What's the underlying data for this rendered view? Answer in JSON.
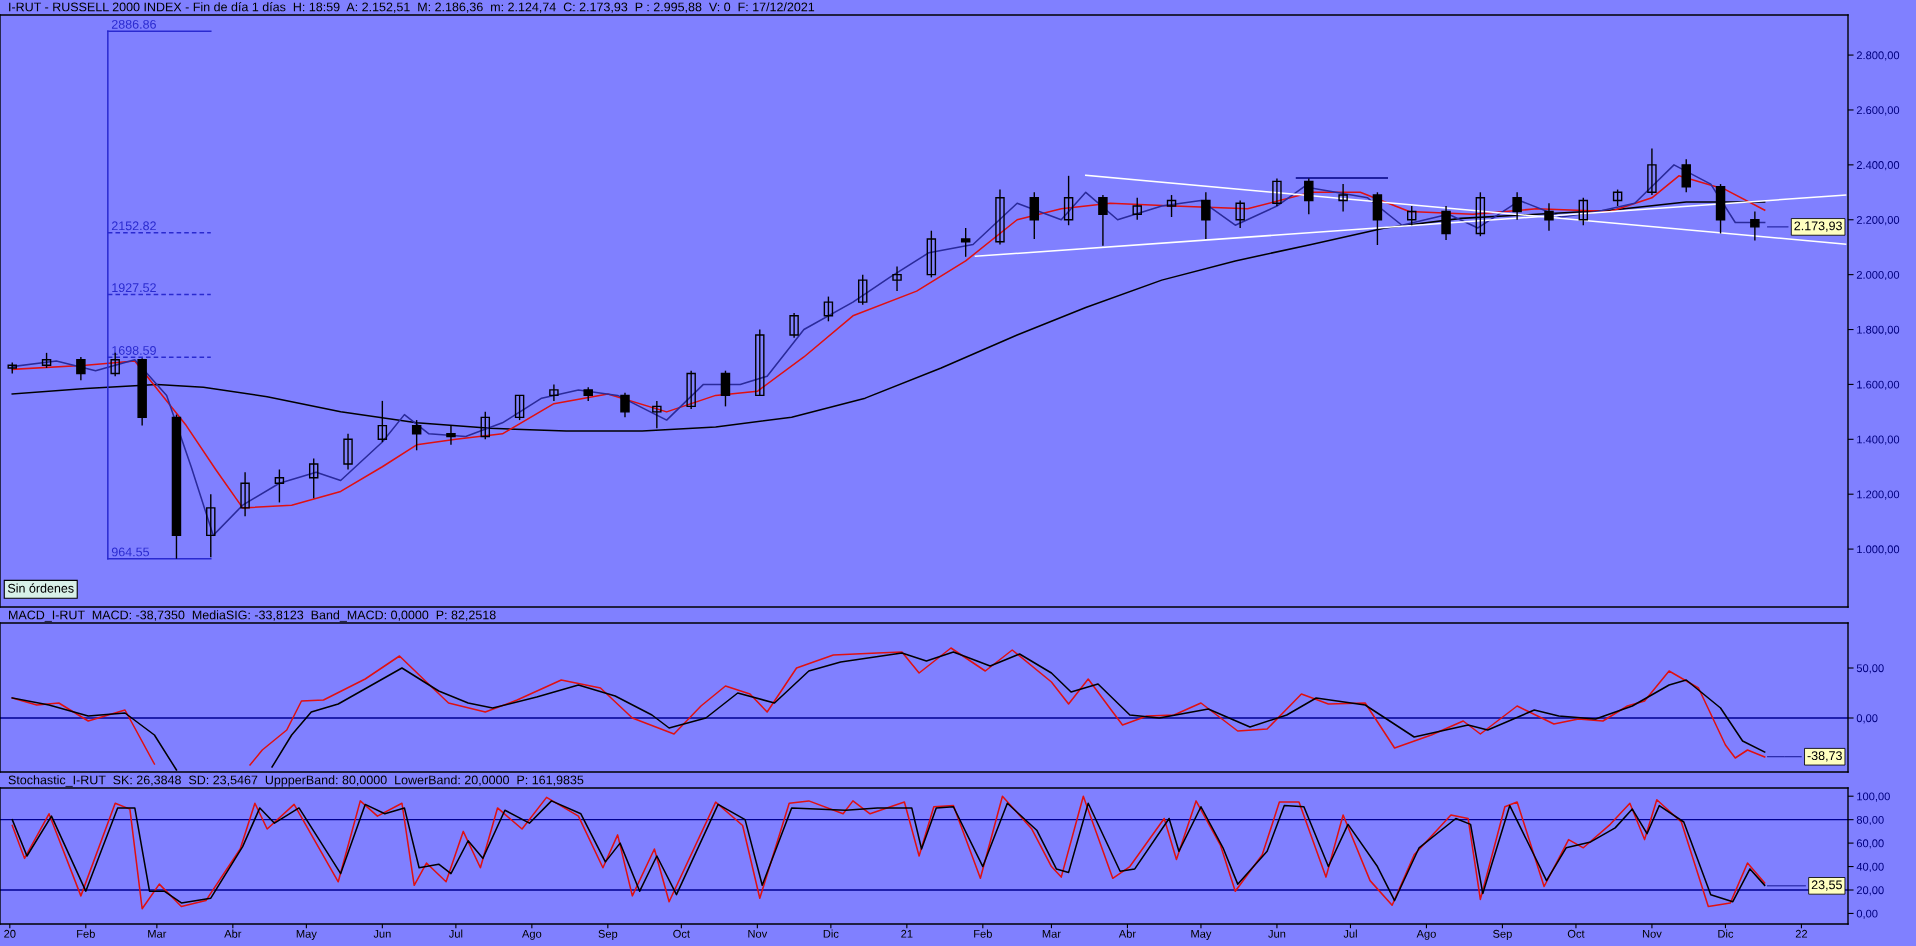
{
  "chart_data": [
    {
      "type": "candlestick",
      "title": "I-RUT - RUSSELL 2000 INDEX - Fin de día 1 días  H: 18:59  A: 2.152,51  M: 2.186,36  m: 2.124,74  C: 2.173,93  P : 2.995,88  V: 0  F: 17/12/2021",
      "x": [
        "2020-01-02",
        "2020-01-16",
        "2020-01-30",
        "2020-02-13",
        "2020-02-24",
        "2020-03-09",
        "2020-03-23",
        "2020-04-06",
        "2020-04-20",
        "2020-05-04",
        "2020-05-18",
        "2020-06-01",
        "2020-06-15",
        "2020-06-29",
        "2020-07-13",
        "2020-07-27",
        "2020-08-10",
        "2020-08-24",
        "2020-09-08",
        "2020-09-21",
        "2020-10-05",
        "2020-10-19",
        "2020-11-02",
        "2020-11-16",
        "2020-11-30",
        "2020-12-14",
        "2020-12-28",
        "2021-01-11",
        "2021-01-25",
        "2021-02-08",
        "2021-02-22",
        "2021-03-08",
        "2021-03-22",
        "2021-04-05",
        "2021-04-19",
        "2021-05-03",
        "2021-05-17",
        "2021-06-01",
        "2021-06-14",
        "2021-06-28",
        "2021-07-12",
        "2021-07-26",
        "2021-08-09",
        "2021-08-23",
        "2021-09-07",
        "2021-09-20",
        "2021-10-04",
        "2021-10-18",
        "2021-11-01",
        "2021-11-15",
        "2021-11-29",
        "2021-12-13"
      ],
      "ohlc": [
        [
          1660,
          1680,
          1640,
          1670
        ],
        [
          1670,
          1715,
          1660,
          1690
        ],
        [
          1690,
          1700,
          1615,
          1640
        ],
        [
          1640,
          1715,
          1630,
          1690
        ],
        [
          1690,
          1695,
          1450,
          1480
        ],
        [
          1480,
          1490,
          965,
          1050
        ],
        [
          1050,
          1200,
          970,
          1150
        ],
        [
          1150,
          1280,
          1120,
          1240
        ],
        [
          1240,
          1290,
          1170,
          1260
        ],
        [
          1260,
          1330,
          1185,
          1310
        ],
        [
          1310,
          1420,
          1290,
          1400
        ],
        [
          1400,
          1540,
          1390,
          1450
        ],
        [
          1450,
          1470,
          1360,
          1420
        ],
        [
          1420,
          1450,
          1380,
          1410
        ],
        [
          1410,
          1500,
          1400,
          1480
        ],
        [
          1480,
          1560,
          1470,
          1560
        ],
        [
          1560,
          1600,
          1540,
          1580
        ],
        [
          1580,
          1590,
          1540,
          1560
        ],
        [
          1560,
          1570,
          1480,
          1500
        ],
        [
          1500,
          1540,
          1440,
          1520
        ],
        [
          1520,
          1650,
          1510,
          1640
        ],
        [
          1640,
          1650,
          1520,
          1560
        ],
        [
          1560,
          1800,
          1560,
          1780
        ],
        [
          1780,
          1860,
          1770,
          1850
        ],
        [
          1850,
          1920,
          1830,
          1900
        ],
        [
          1900,
          2000,
          1890,
          1980
        ],
        [
          1980,
          2030,
          1940,
          2000
        ],
        [
          2000,
          2160,
          1990,
          2130
        ],
        [
          2130,
          2170,
          2065,
          2120
        ],
        [
          2120,
          2310,
          2110,
          2280
        ],
        [
          2280,
          2300,
          2130,
          2200
        ],
        [
          2200,
          2360,
          2180,
          2280
        ],
        [
          2280,
          2290,
          2105,
          2220
        ],
        [
          2220,
          2280,
          2200,
          2250
        ],
        [
          2250,
          2290,
          2210,
          2270
        ],
        [
          2270,
          2300,
          2130,
          2200
        ],
        [
          2200,
          2270,
          2170,
          2260
        ],
        [
          2260,
          2350,
          2250,
          2340
        ],
        [
          2340,
          2350,
          2220,
          2270
        ],
        [
          2270,
          2330,
          2230,
          2290
        ],
        [
          2290,
          2300,
          2108,
          2200
        ],
        [
          2200,
          2250,
          2180,
          2230
        ],
        [
          2230,
          2250,
          2126,
          2150
        ],
        [
          2150,
          2300,
          2140,
          2280
        ],
        [
          2280,
          2300,
          2200,
          2230
        ],
        [
          2230,
          2260,
          2160,
          2200
        ],
        [
          2200,
          2280,
          2180,
          2270
        ],
        [
          2270,
          2310,
          2250,
          2300
        ],
        [
          2300,
          2460,
          2290,
          2400
        ],
        [
          2400,
          2420,
          2300,
          2320
        ],
        [
          2320,
          2330,
          2150,
          2200
        ],
        [
          2200,
          2230,
          2124,
          2174
        ]
      ],
      "color": "#000000",
      "series": [
        {
          "type": "line",
          "color": "#000000",
          "x": [
            "2020-01-02",
            "2020-02-01",
            "2020-03-01",
            "2020-03-20",
            "2020-04-15",
            "2020-05-15",
            "2020-06-15",
            "2020-07-15",
            "2020-08-15",
            "2020-09-15",
            "2020-10-15",
            "2020-11-15",
            "2020-12-15",
            "2021-01-15",
            "2021-02-15",
            "2021-03-15",
            "2021-04-15",
            "2021-05-15",
            "2021-06-15",
            "2021-07-15",
            "2021-08-15",
            "2021-09-15",
            "2021-10-15",
            "2021-11-15",
            "2021-12-17"
          ],
          "values": [
            1565,
            1585,
            1600,
            1590,
            1555,
            1500,
            1460,
            1440,
            1430,
            1430,
            1445,
            1480,
            1550,
            1660,
            1780,
            1880,
            1980,
            2050,
            2110,
            2170,
            2205,
            2220,
            2235,
            2265,
            2265
          ]
        },
        {
          "type": "line",
          "color": "#e01010",
          "x": [
            "2020-01-02",
            "2020-02-01",
            "2020-02-21",
            "2020-03-13",
            "2020-03-25",
            "2020-04-05",
            "2020-04-25",
            "2020-05-15",
            "2020-06-01",
            "2020-06-15",
            "2020-07-01",
            "2020-07-20",
            "2020-08-10",
            "2020-09-01",
            "2020-09-25",
            "2020-10-15",
            "2020-11-01",
            "2020-11-20",
            "2020-12-10",
            "2021-01-05",
            "2021-01-25",
            "2021-02-15",
            "2021-03-05",
            "2021-03-25",
            "2021-04-20",
            "2021-05-20",
            "2021-06-15",
            "2021-07-05",
            "2021-07-25",
            "2021-08-20",
            "2021-09-15",
            "2021-10-15",
            "2021-11-01",
            "2021-11-12",
            "2021-12-01",
            "2021-12-17"
          ],
          "values": [
            1655,
            1670,
            1685,
            1450,
            1290,
            1150,
            1160,
            1210,
            1300,
            1380,
            1400,
            1420,
            1530,
            1565,
            1500,
            1560,
            1575,
            1700,
            1850,
            1940,
            2050,
            2200,
            2240,
            2260,
            2250,
            2240,
            2300,
            2300,
            2230,
            2220,
            2240,
            2230,
            2280,
            2360,
            2310,
            2235
          ]
        },
        {
          "type": "line",
          "color": "#2a2a9a",
          "x": [
            "2020-01-02",
            "2020-01-20",
            "2020-02-05",
            "2020-02-21",
            "2020-03-05",
            "2020-03-15",
            "2020-03-24",
            "2020-04-05",
            "2020-04-20",
            "2020-05-05",
            "2020-05-15",
            "2020-06-01",
            "2020-06-10",
            "2020-06-20",
            "2020-07-05",
            "2020-07-20",
            "2020-08-05",
            "2020-08-20",
            "2020-09-05",
            "2020-09-25",
            "2020-10-10",
            "2020-10-25",
            "2020-11-05",
            "2020-11-20",
            "2020-12-10",
            "2020-12-25",
            "2021-01-10",
            "2021-01-28",
            "2021-02-15",
            "2021-03-05",
            "2021-03-15",
            "2021-03-28",
            "2021-04-15",
            "2021-05-01",
            "2021-05-15",
            "2021-06-01",
            "2021-06-12",
            "2021-06-25",
            "2021-07-08",
            "2021-07-22",
            "2021-08-10",
            "2021-08-22",
            "2021-09-08",
            "2021-09-25",
            "2021-10-10",
            "2021-10-25",
            "2021-11-10",
            "2021-11-25",
            "2021-12-05",
            "2021-12-17"
          ],
          "values": [
            1665,
            1685,
            1650,
            1690,
            1560,
            1300,
            1050,
            1160,
            1240,
            1280,
            1250,
            1390,
            1490,
            1420,
            1410,
            1460,
            1550,
            1580,
            1560,
            1470,
            1600,
            1600,
            1630,
            1800,
            1900,
            1990,
            2080,
            2110,
            2260,
            2200,
            2300,
            2200,
            2250,
            2270,
            2180,
            2250,
            2320,
            2300,
            2280,
            2180,
            2220,
            2170,
            2270,
            2210,
            2230,
            2260,
            2400,
            2330,
            2190,
            2190
          ]
        },
        {
          "type": "line",
          "color": "#ffffff",
          "x": [
            "2021-03-15",
            "2022-01-19"
          ],
          "values": [
            2362,
            2111
          ]
        },
        {
          "type": "line",
          "color": "#ffffff",
          "x": [
            "2021-01-29",
            "2022-01-19"
          ],
          "values": [
            2067,
            2290
          ]
        },
        {
          "type": "line",
          "color": "#000080",
          "x": [
            "2021-06-09",
            "2021-07-16"
          ],
          "values": [
            2352,
            2352
          ]
        },
        {
          "type": "line",
          "color": "#2a2ad0",
          "x": [
            "2020-02-10",
            "2020-02-10"
          ],
          "values": [
            964.55,
            2886.86
          ]
        },
        {
          "type": "line",
          "color": "#2a2ad0",
          "name": "2886.86",
          "x": [
            "2020-02-10",
            "2020-03-23"
          ],
          "values": [
            2886.86,
            2886.86
          ]
        },
        {
          "type": "line",
          "color": "#2a2ad0",
          "name": "2152.82",
          "line_style": "dashed",
          "x": [
            "2020-02-10",
            "2020-03-23"
          ],
          "values": [
            2152.82,
            2152.82
          ]
        },
        {
          "type": "line",
          "color": "#2a2ad0",
          "name": "1927.52",
          "line_style": "dashed",
          "x": [
            "2020-02-10",
            "2020-03-23"
          ],
          "values": [
            1927.52,
            1927.52
          ]
        },
        {
          "type": "line",
          "color": "#2a2ad0",
          "name": "1698.59",
          "line_style": "dashed",
          "x": [
            "2020-02-10",
            "2020-03-23"
          ],
          "values": [
            1698.59,
            1698.59
          ]
        },
        {
          "type": "line",
          "color": "#2a2ad0",
          "name": "964.55",
          "x": [
            "2020-02-10",
            "2020-03-23"
          ],
          "values": [
            964.55,
            964.55
          ]
        }
      ],
      "annotations": [
        "Sin órdenes",
        {
          "text": "2.173,93",
          "x": "2021-12-17",
          "y": 2173.93
        }
      ],
      "xlim": [
        "2019-12-28",
        "2022-01-20"
      ],
      "ylim": [
        789,
        2946
      ],
      "yticks": [
        {
          "value": 1000,
          "label": "1.000,00"
        },
        {
          "value": 1200,
          "label": "1.200,00"
        },
        {
          "value": 1400,
          "label": "1.400,00"
        },
        {
          "value": 1600,
          "label": "1.600,00"
        },
        {
          "value": 1800,
          "label": "1.800,00"
        },
        {
          "value": 2000,
          "label": "2.000,00"
        },
        {
          "value": 2200,
          "label": "2.200,00"
        },
        {
          "value": 2400,
          "label": "2.400,00"
        },
        {
          "value": 2600,
          "label": "2.600,00"
        },
        {
          "value": 2800,
          "label": "2.800,00"
        }
      ],
      "tick_labels": "y"
    },
    {
      "type": "line",
      "title": "MACD_I-RUT  MACD: -38,7350  MediaSIG: -33,8123  Band_MACD: 0,0000  P: 82,2518",
      "series": [
        {
          "color": "#e01010",
          "x": [
            "2020-01-02",
            "2020-01-12",
            "2020-01-21",
            "2020-02-02",
            "2020-02-17",
            "2020-02-29",
            "2020-03-20",
            "2020-04-08",
            "2020-04-13",
            "2020-04-23",
            "2020-04-29",
            "2020-05-08",
            "2020-05-25",
            "2020-06-08",
            "2020-06-19",
            "2020-06-28",
            "2020-07-13",
            "2020-07-26",
            "2020-08-13",
            "2020-08-29",
            "2020-09-11",
            "2020-09-28",
            "2020-10-09",
            "2020-10-19",
            "2020-10-29",
            "2020-11-05",
            "2020-11-17",
            "2020-12-02",
            "2020-12-20",
            "2020-12-30",
            "2021-01-06",
            "2021-01-19",
            "2021-02-02",
            "2021-02-13",
            "2021-03-01",
            "2021-03-08",
            "2021-03-16",
            "2021-03-26",
            "2021-03-30",
            "2021-04-09",
            "2021-04-20",
            "2021-05-01",
            "2021-05-16",
            "2021-05-28",
            "2021-06-11",
            "2021-06-22",
            "2021-07-07",
            "2021-07-19",
            "2021-08-03",
            "2021-08-16",
            "2021-08-23",
            "2021-09-07",
            "2021-09-22",
            "2021-10-02",
            "2021-10-12",
            "2021-10-22",
            "2021-10-29",
            "2021-11-08",
            "2021-11-20",
            "2021-12-01",
            "2021-12-05",
            "2021-12-10",
            "2021-12-17"
          ],
          "values": [
            20,
            13,
            15,
            -3,
            8,
            -46,
            null,
            -47,
            -32,
            -12,
            17,
            18,
            39,
            62,
            36,
            15,
            6,
            18,
            38,
            30,
            0,
            -16,
            12,
            32,
            24,
            6,
            50,
            63,
            65,
            66,
            45,
            70,
            47,
            68,
            36,
            14,
            39,
            6,
            -7,
            2,
            3,
            15,
            -13,
            -11,
            24,
            14,
            15,
            -30,
            -17,
            -3,
            -16,
            12,
            -6,
            -1,
            -3,
            12,
            17,
            47,
            30,
            -27,
            -40,
            -32,
            -39
          ]
        },
        {
          "color": "#000000",
          "x": [
            "2020-01-02",
            "2020-01-17",
            "2020-02-02",
            "2020-02-17",
            "2020-02-29",
            "2020-03-09",
            "2020-03-25",
            "2020-04-17",
            "2020-04-25",
            "2020-05-03",
            "2020-05-14",
            "2020-06-09",
            "2020-06-24",
            "2020-07-06",
            "2020-07-16",
            "2020-08-03",
            "2020-08-20",
            "2020-09-04",
            "2020-09-19",
            "2020-09-26",
            "2020-10-11",
            "2020-10-24",
            "2020-11-08",
            "2020-11-22",
            "2020-12-05",
            "2020-12-30",
            "2021-01-09",
            "2021-01-20",
            "2021-02-04",
            "2021-02-16",
            "2021-03-01",
            "2021-03-09",
            "2021-03-20",
            "2021-04-02",
            "2021-04-14",
            "2021-05-04",
            "2021-05-21",
            "2021-06-05",
            "2021-06-17",
            "2021-07-07",
            "2021-07-27",
            "2021-08-18",
            "2021-08-26",
            "2021-09-14",
            "2021-09-24",
            "2021-10-09",
            "2021-10-24",
            "2021-11-08",
            "2021-11-15",
            "2021-11-29",
            "2021-12-08",
            "2021-12-17"
          ],
          "values": [
            20,
            13,
            2,
            5,
            -17,
            -52,
            null,
            -49,
            -17,
            6,
            14,
            50,
            27,
            15,
            10,
            21,
            33,
            22,
            3,
            -10,
            0,
            25,
            15,
            47,
            56,
            65,
            57,
            66,
            52,
            64,
            45,
            26,
            34,
            3,
            0,
            9,
            -9,
            3,
            20,
            13,
            -19,
            -7,
            -12,
            8,
            2,
            -1,
            12,
            33,
            38,
            10,
            -23,
            -34
          ]
        }
      ],
      "ref_lines": [
        {
          "axis": "y",
          "value": 0,
          "color": "#000090"
        }
      ],
      "annotations": [
        {
          "text": "-38,73",
          "x": "2021-12-17",
          "y": -38.73
        }
      ],
      "xlim": [
        "2019-12-28",
        "2022-01-20"
      ],
      "ylim": [
        -54,
        95
      ],
      "yticks": [
        {
          "value": 0,
          "label": "0,00"
        },
        {
          "value": 50,
          "label": "50,00"
        }
      ],
      "tick_labels": "y"
    },
    {
      "type": "line",
      "title": "Stochastic_I-RUT  SK: 26,3848  SD: 23,5467  UppperBand: 80,0000  LowerBand: 20,0000  P: 161,9835",
      "series": [
        {
          "color": "#e01010",
          "x": [
            "2020-01-02",
            "2020-01-07",
            "2020-01-17",
            "2020-01-30",
            "2020-02-13",
            "2020-02-19",
            "2020-02-24",
            "2020-03-02",
            "2020-03-11",
            "2020-03-21",
            "2020-04-04",
            "2020-04-10",
            "2020-04-15",
            "2020-04-26",
            "2020-05-14",
            "2020-05-23",
            "2020-05-30",
            "2020-06-09",
            "2020-06-14",
            "2020-06-19",
            "2020-06-27",
            "2020-07-04",
            "2020-07-11",
            "2020-07-18",
            "2020-07-28",
            "2020-08-07",
            "2020-08-20",
            "2020-08-30",
            "2020-09-05",
            "2020-09-11",
            "2020-09-20",
            "2020-09-26",
            "2020-10-15",
            "2020-10-26",
            "2020-11-02",
            "2020-11-14",
            "2020-11-22",
            "2020-12-06",
            "2020-12-10",
            "2020-12-17",
            "2020-12-31",
            "2021-01-06",
            "2021-01-12",
            "2021-01-20",
            "2021-01-31",
            "2021-02-09",
            "2021-02-21",
            "2021-03-01",
            "2021-03-05",
            "2021-03-14",
            "2021-03-26",
            "2021-04-02",
            "2021-04-16",
            "2021-04-21",
            "2021-04-29",
            "2021-05-09",
            "2021-05-15",
            "2021-05-26",
            "2021-06-02",
            "2021-06-10",
            "2021-06-21",
            "2021-06-28",
            "2021-07-09",
            "2021-07-18",
            "2021-07-27",
            "2021-08-11",
            "2021-08-18",
            "2021-08-23",
            "2021-09-02",
            "2021-09-07",
            "2021-09-18",
            "2021-09-28",
            "2021-10-04",
            "2021-10-15",
            "2021-10-23",
            "2021-10-29",
            "2021-11-03",
            "2021-11-13",
            "2021-11-24",
            "2021-12-03",
            "2021-12-10",
            "2021-12-17"
          ],
          "values": [
            75,
            47,
            85,
            15,
            94,
            89,
            4,
            25,
            6,
            11,
            55,
            94,
            72,
            93,
            27,
            96,
            83,
            94,
            24,
            43,
            27,
            70,
            39,
            90,
            72,
            99,
            83,
            39,
            67,
            15,
            55,
            10,
            95,
            75,
            13,
            94,
            96,
            85,
            96,
            85,
            95,
            49,
            91,
            92,
            30,
            100,
            72,
            40,
            31,
            100,
            30,
            40,
            81,
            46,
            96,
            58,
            19,
            50,
            95,
            95,
            31,
            84,
            28,
            7,
            50,
            84,
            81,
            12,
            91,
            95,
            23,
            63,
            56,
            76,
            94,
            63,
            97,
            78,
            6,
            9,
            43,
            26
          ]
        },
        {
          "color": "#000000",
          "x": [
            "2020-01-02",
            "2020-01-08",
            "2020-01-18",
            "2020-02-01",
            "2020-02-14",
            "2020-02-21",
            "2020-02-27",
            "2020-03-04",
            "2020-03-11",
            "2020-03-23",
            "2020-04-05",
            "2020-04-12",
            "2020-04-18",
            "2020-04-28",
            "2020-05-15",
            "2020-05-25",
            "2020-06-02",
            "2020-06-10",
            "2020-06-16",
            "2020-06-24",
            "2020-06-29",
            "2020-07-06",
            "2020-07-12",
            "2020-07-21",
            "2020-07-31",
            "2020-08-09",
            "2020-08-21",
            "2020-08-31",
            "2020-09-06",
            "2020-09-14",
            "2020-09-21",
            "2020-09-29",
            "2020-10-16",
            "2020-10-27",
            "2020-11-03",
            "2020-11-15",
            "2020-12-07",
            "2020-12-20",
            "2021-01-03",
            "2021-01-07",
            "2021-01-13",
            "2021-01-20",
            "2021-02-01",
            "2021-02-11",
            "2021-02-23",
            "2021-03-03",
            "2021-03-08",
            "2021-03-16",
            "2021-03-29",
            "2021-04-04",
            "2021-04-18",
            "2021-04-22",
            "2021-05-01",
            "2021-05-10",
            "2021-05-16",
            "2021-05-28",
            "2021-06-04",
            "2021-06-12",
            "2021-06-22",
            "2021-06-30",
            "2021-07-12",
            "2021-07-19",
            "2021-07-29",
            "2021-08-13",
            "2021-08-19",
            "2021-08-24",
            "2021-09-04",
            "2021-09-19",
            "2021-09-27",
            "2021-10-07",
            "2021-10-17",
            "2021-10-24",
            "2021-10-30",
            "2021-11-04",
            "2021-11-14",
            "2021-11-25",
            "2021-12-04",
            "2021-12-11",
            "2021-12-17"
          ],
          "values": [
            80,
            49,
            83,
            19,
            90,
            90,
            19,
            19,
            9,
            13,
            57,
            90,
            77,
            90,
            34,
            93,
            85,
            90,
            39,
            42,
            34,
            62,
            47,
            88,
            77,
            96,
            85,
            44,
            60,
            19,
            49,
            16,
            93,
            80,
            24,
            90,
            88,
            90,
            90,
            55,
            90,
            91,
            40,
            94,
            71,
            38,
            35,
            94,
            36,
            38,
            81,
            53,
            91,
            56,
            25,
            53,
            92,
            91,
            40,
            76,
            40,
            11,
            56,
            81,
            76,
            17,
            92,
            28,
            56,
            61,
            73,
            89,
            68,
            92,
            78,
            16,
            10,
            38,
            24
          ]
        }
      ],
      "ref_lines": [
        {
          "axis": "y",
          "value": 80,
          "color": "#000090"
        },
        {
          "axis": "y",
          "value": 20,
          "color": "#000090"
        }
      ],
      "annotations": [
        {
          "text": "23,55",
          "x": "2021-12-17",
          "y": 23.55
        }
      ],
      "xlim": [
        "2019-12-28",
        "2022-01-20"
      ],
      "ylim": [
        -9,
        107
      ],
      "yticks": [
        {
          "value": 0,
          "label": "0,00"
        },
        {
          "value": 20,
          "label": "20,00"
        },
        {
          "value": 40,
          "label": "40,00"
        },
        {
          "value": 60,
          "label": "60,00"
        },
        {
          "value": 80,
          "label": "80,00"
        },
        {
          "value": 100,
          "label": "100,00"
        }
      ],
      "xticks": [
        {
          "value": "2020-01-01",
          "label": "20"
        },
        {
          "value": "2020-02-01",
          "label": "Feb"
        },
        {
          "value": "2020-03-01",
          "label": "Mar"
        },
        {
          "value": "2020-04-01",
          "label": "Abr"
        },
        {
          "value": "2020-05-01",
          "label": "May"
        },
        {
          "value": "2020-06-01",
          "label": "Jun"
        },
        {
          "value": "2020-07-01",
          "label": "Jul"
        },
        {
          "value": "2020-08-01",
          "label": "Ago"
        },
        {
          "value": "2020-09-01",
          "label": "Sep"
        },
        {
          "value": "2020-10-01",
          "label": "Oct"
        },
        {
          "value": "2020-11-01",
          "label": "Nov"
        },
        {
          "value": "2020-12-01",
          "label": "Dic"
        },
        {
          "value": "2021-01-01",
          "label": "21"
        },
        {
          "value": "2021-02-01",
          "label": "Feb"
        },
        {
          "value": "2021-03-01",
          "label": "Mar"
        },
        {
          "value": "2021-04-01",
          "label": "Abr"
        },
        {
          "value": "2021-05-01",
          "label": "May"
        },
        {
          "value": "2021-06-01",
          "label": "Jun"
        },
        {
          "value": "2021-07-01",
          "label": "Jul"
        },
        {
          "value": "2021-08-01",
          "label": "Ago"
        },
        {
          "value": "2021-09-01",
          "label": "Sep"
        },
        {
          "value": "2021-10-01",
          "label": "Oct"
        },
        {
          "value": "2021-11-01",
          "label": "Nov"
        },
        {
          "value": "2021-12-01",
          "label": "Dic"
        },
        {
          "value": "2022-01-01",
          "label": "22"
        }
      ]
    }
  ]
}
